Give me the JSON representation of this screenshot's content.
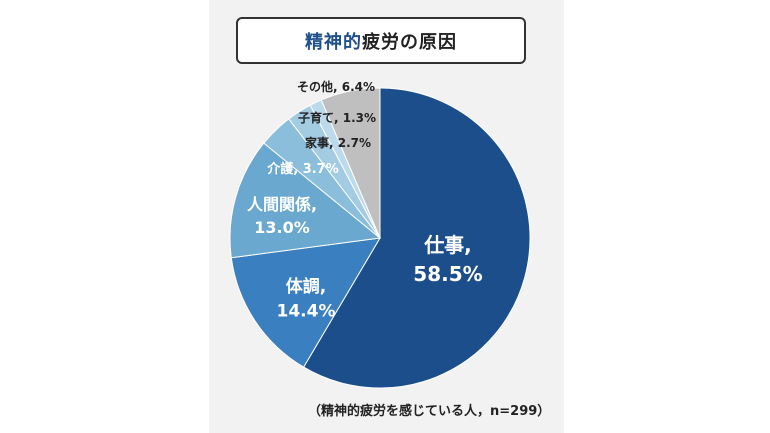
{
  "title": {
    "accent": "精神的",
    "rest": "疲労の原因"
  },
  "footnote": "（精神的疲労を感じている人，n=299）",
  "chart_data": {
    "type": "pie",
    "title": "精神的疲労の原因",
    "unit": "%",
    "start": "12 o'clock",
    "direction": "clockwise",
    "slices": [
      {
        "name": "仕事",
        "value": 58.5,
        "label_lines": [
          "仕事,",
          "58.5%"
        ],
        "color": "#1b4e8a"
      },
      {
        "name": "体調",
        "value": 14.4,
        "label_lines": [
          "体調,",
          "14.4%"
        ],
        "color": "#3a7fbf"
      },
      {
        "name": "人間関係",
        "value": 13.0,
        "label_lines": [
          "人間関係,",
          "13.0%"
        ],
        "color": "#6aa8d0"
      },
      {
        "name": "介護",
        "value": 3.7,
        "label_lines": [
          "介護, 3.7%"
        ],
        "color": "#8bbedb"
      },
      {
        "name": "家事",
        "value": 2.7,
        "label_lines": [
          "家事, 2.7%"
        ],
        "color": "#a3cbe2"
      },
      {
        "name": "子育て",
        "value": 1.3,
        "label_lines": [
          "子育て, 1.3%"
        ],
        "color": "#bdd9ec"
      },
      {
        "name": "その他",
        "value": 6.4,
        "label_lines": [
          "その他, 6.4%"
        ],
        "color": "#bfbfbf"
      }
    ],
    "footnote": "（精神的疲労を感じている人，n=299）"
  }
}
